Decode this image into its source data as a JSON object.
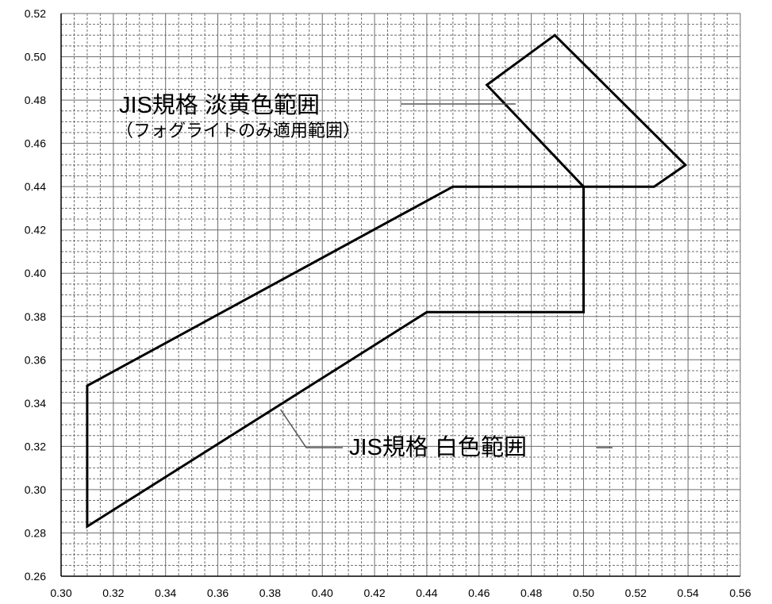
{
  "chart_data": {
    "type": "line",
    "title": "",
    "xlabel": "",
    "ylabel": "",
    "xlim": [
      0.3,
      0.56
    ],
    "ylim": [
      0.26,
      0.52
    ],
    "x_ticks": [
      "0.30",
      "0.32",
      "0.34",
      "0.36",
      "0.38",
      "0.40",
      "0.42",
      "0.44",
      "0.46",
      "0.48",
      "0.50",
      "0.52",
      "0.54",
      "0.56"
    ],
    "y_ticks": [
      "0.26",
      "0.28",
      "0.30",
      "0.32",
      "0.34",
      "0.36",
      "0.38",
      "0.40",
      "0.42",
      "0.44",
      "0.46",
      "0.48",
      "0.50",
      "0.52"
    ],
    "grid": true,
    "series": [
      {
        "name": "JIS規格 白色範囲",
        "closed": true,
        "points": [
          [
            0.31,
            0.348
          ],
          [
            0.45,
            0.44
          ],
          [
            0.5,
            0.44
          ],
          [
            0.5,
            0.382
          ],
          [
            0.44,
            0.382
          ],
          [
            0.31,
            0.283
          ]
        ]
      },
      {
        "name": "JIS規格 淡黄色範囲",
        "closed": true,
        "points": [
          [
            0.463,
            0.487
          ],
          [
            0.489,
            0.51
          ],
          [
            0.539,
            0.45
          ],
          [
            0.527,
            0.44
          ],
          [
            0.5,
            0.44
          ]
        ]
      }
    ],
    "annotations": {
      "yellow_title": "JIS規格 淡黄色範囲",
      "yellow_note": "（フォグライトのみ適用範囲）",
      "white_title": "JIS規格 白色範囲"
    }
  }
}
